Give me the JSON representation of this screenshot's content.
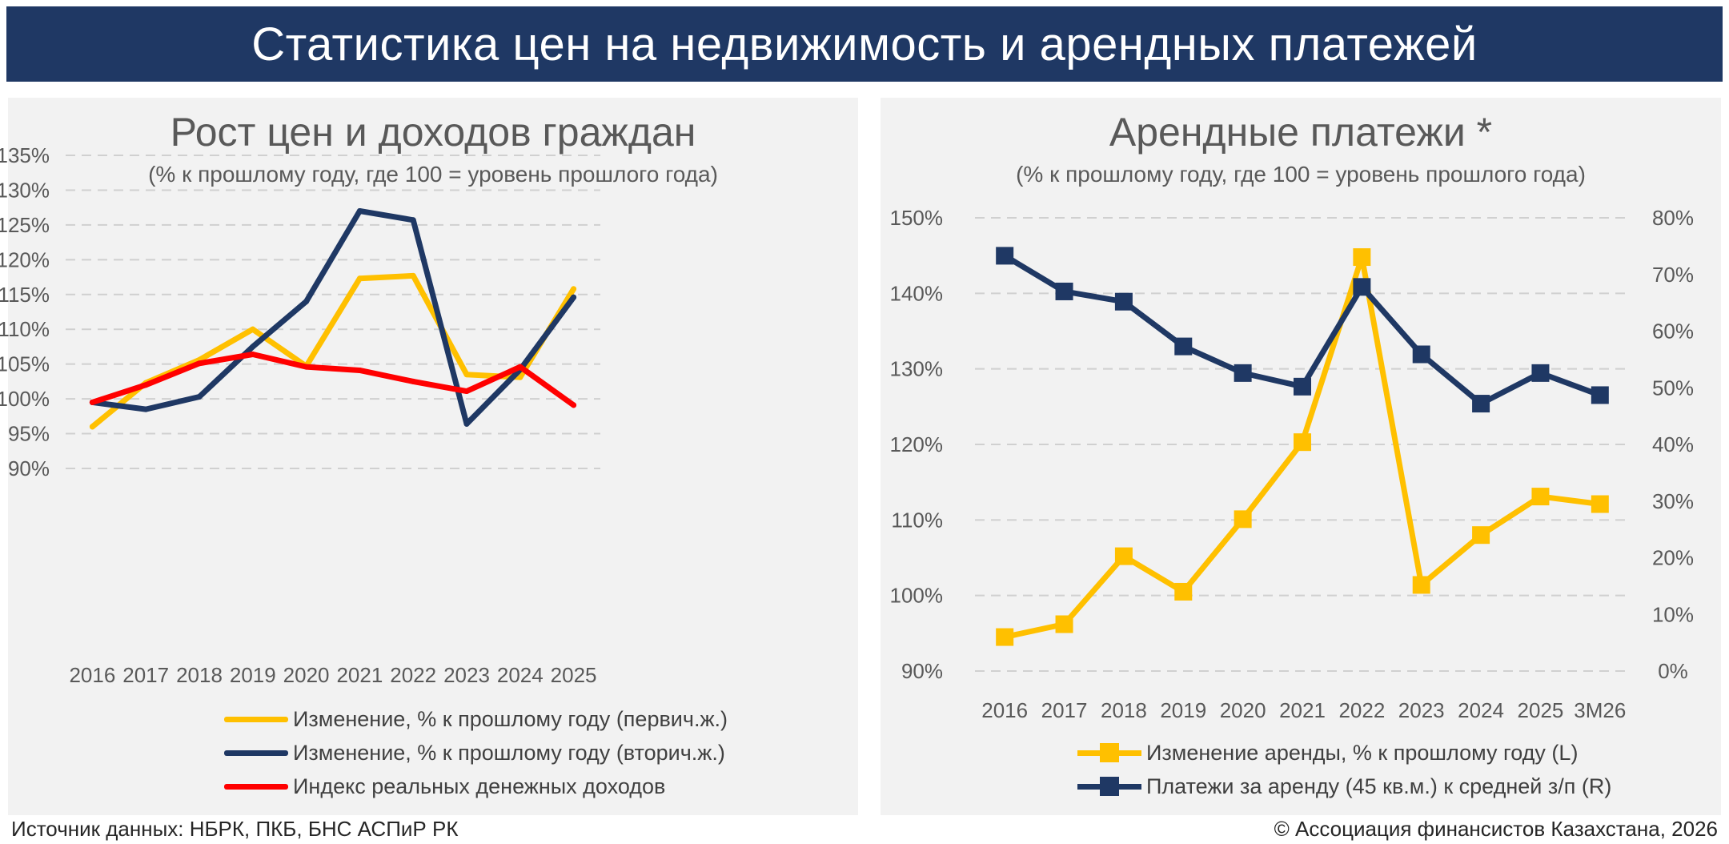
{
  "header": {
    "title": "Статистика цен на недвижимость и арендных платежей"
  },
  "colors": {
    "yellow": "#ffc000",
    "navy": "#1f3864",
    "red": "#ff0000",
    "grid": "#d0d0d0",
    "panel_bg": "#f2f2f2"
  },
  "footer": {
    "source": "Источник данных: НБРК, ПКБ, БНС АСПиР РК",
    "copyright": "© Ассоциация финансистов Казахстана, 2026"
  },
  "chart_data": [
    {
      "type": "line",
      "title": "Рост цен и доходов граждан",
      "subtitle": "(% к прошлому году, где 100 = уровень прошлого года)",
      "categories": [
        "2016",
        "2017",
        "2018",
        "2019",
        "2020",
        "2021",
        "2022",
        "2023",
        "2024",
        "2025"
      ],
      "ylim": [
        90,
        135
      ],
      "yticks": [
        "135%",
        "130%",
        "125%",
        "120%",
        "115%",
        "110%",
        "105%",
        "100%",
        "95%",
        "90%"
      ],
      "grid": true,
      "legend_position": "bottom",
      "series": [
        {
          "name": "Изменение, % к прошлому году (первич.ж.)",
          "color": "#ffc000",
          "values": [
            96.0,
            102.3,
            105.6,
            110.0,
            104.7,
            117.3,
            117.7,
            103.5,
            103.1,
            115.8
          ]
        },
        {
          "name": "Изменение, % к прошлому году (вторич.ж.)",
          "color": "#1f3864",
          "values": [
            99.5,
            98.5,
            100.3,
            107.5,
            114.0,
            127.0,
            125.7,
            96.4,
            104.2,
            114.6
          ]
        },
        {
          "name": "Индекс реальных денежных доходов",
          "color": "#ff0000",
          "values": [
            99.5,
            102.0,
            105.1,
            106.4,
            104.6,
            104.1,
            102.5,
            101.1,
            104.6,
            99.1
          ]
        }
      ]
    },
    {
      "type": "line",
      "title": "Арендные платежи *",
      "subtitle": "(% к прошлому году, где 100 = уровень прошлого года)",
      "categories": [
        "2016",
        "2017",
        "2018",
        "2019",
        "2020",
        "2021",
        "2022",
        "2023",
        "2024",
        "2025",
        "3М26"
      ],
      "ylim_left": [
        90,
        150
      ],
      "yticks_left": [
        "150%",
        "140%",
        "130%",
        "120%",
        "110%",
        "100%",
        "90%"
      ],
      "ylim_right": [
        0,
        80
      ],
      "yticks_right": [
        "80%",
        "70%",
        "60%",
        "50%",
        "40%",
        "30%",
        "20%",
        "10%",
        "0%"
      ],
      "grid": true,
      "legend_position": "bottom",
      "series": [
        {
          "name": "Изменение аренды, % к прошлому году (L)",
          "axis": "left",
          "marker": "square",
          "color": "#ffc000",
          "values": [
            94.5,
            96.2,
            105.2,
            100.5,
            110.1,
            120.3,
            144.8,
            101.4,
            108.0,
            113.1,
            112.1
          ]
        },
        {
          "name": "Платежи за аренду (45 кв.м.) к средней з/п (R)",
          "axis": "right",
          "marker": "square",
          "color": "#1f3864",
          "values": [
            73.3,
            67.0,
            65.2,
            57.3,
            52.6,
            50.2,
            67.8,
            55.9,
            47.2,
            52.6,
            48.7
          ]
        }
      ]
    }
  ]
}
